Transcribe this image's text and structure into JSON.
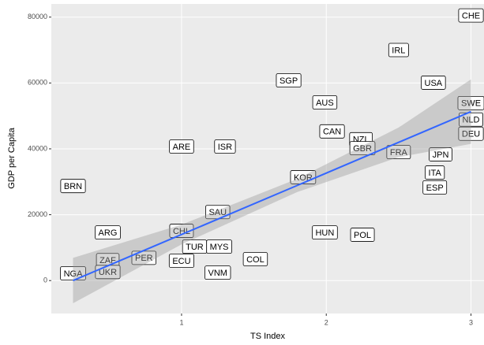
{
  "chart_data": {
    "type": "scatter",
    "x_label": "TS Index",
    "y_label": "GDP per Capita",
    "labels": [
      "CHE",
      "IRL",
      "SGP",
      "USA",
      "AUS",
      "SWE",
      "NLD",
      "CAN",
      "DEU",
      "NZL",
      "ARE",
      "ISR",
      "GBR",
      "FRA",
      "JPN",
      "ITA",
      "KOR",
      "ESP",
      "BRN",
      "SAU",
      "ARG",
      "HUN",
      "POL",
      "CHL",
      "TUR",
      "MYS",
      "PER",
      "ZAF",
      "ECU",
      "COL",
      "UKR",
      "NGA",
      "VNM"
    ],
    "x": [
      3.0,
      2.5,
      1.74,
      2.74,
      1.99,
      3.0,
      3.0,
      2.04,
      3.0,
      2.24,
      1.0,
      1.3,
      2.25,
      2.5,
      2.79,
      2.75,
      1.84,
      2.75,
      0.25,
      1.25,
      0.49,
      1.99,
      2.25,
      1.0,
      1.09,
      1.26,
      0.74,
      0.49,
      1.0,
      1.51,
      0.49,
      0.25,
      1.25
    ],
    "values": [
      80500,
      70000,
      60800,
      60100,
      54100,
      53900,
      48900,
      45300,
      44600,
      42900,
      40700,
      40700,
      40200,
      39000,
      38300,
      32800,
      31400,
      28300,
      28700,
      20800,
      14600,
      14600,
      13900,
      15100,
      10300,
      10300,
      6900,
      6200,
      6000,
      6500,
      2600,
      2200,
      2400
    ],
    "fit": {
      "color": "#3366ff",
      "x": [
        0.25,
        1.0,
        1.8,
        2.5,
        3.0
      ],
      "y": [
        0,
        13990,
        28900,
        41970,
        51300
      ],
      "lower": [
        -6900,
        10990,
        26900,
        37470,
        41500
      ],
      "upper": [
        6900,
        16990,
        30900,
        46470,
        61100
      ]
    },
    "xlim": [
      0.1,
      3.09
    ],
    "xticks": [
      1,
      2,
      3
    ],
    "ylim": [
      -10000,
      84000
    ],
    "yticks": [
      0,
      20000,
      40000,
      60000,
      80000
    ],
    "grid": true
  }
}
